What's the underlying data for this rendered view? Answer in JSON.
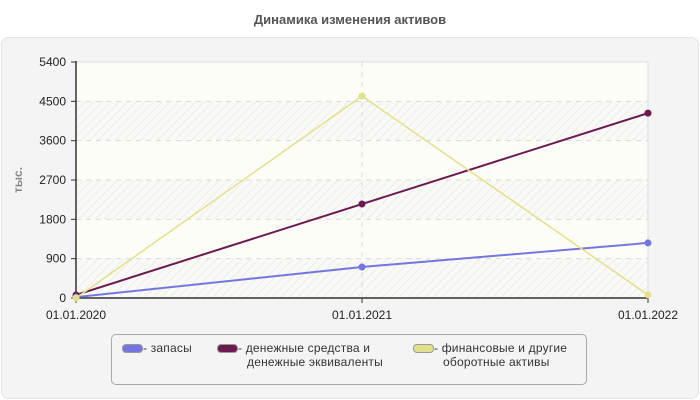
{
  "title": "Динамика изменения активов",
  "chart_data": {
    "type": "line",
    "title": "Динамика изменения активов",
    "xlabel": "",
    "ylabel": "тыс.",
    "x": [
      "01.01.2020",
      "01.01.2021",
      "01.01.2022"
    ],
    "ylim": [
      0,
      5400
    ],
    "yticks": [
      0,
      900,
      1800,
      2700,
      3600,
      4500,
      5400
    ],
    "grid": true,
    "legend_position": "bottom",
    "series": [
      {
        "name": "- запасы",
        "color": "#7575e0",
        "values": [
          20,
          710,
          1260
        ]
      },
      {
        "name": "- денежные средства и денежные эквиваленты",
        "color": "#6b1a4f",
        "values": [
          70,
          2150,
          4230
        ]
      },
      {
        "name": "- финансовые и другие оборотные активы",
        "color": "#e3e08c",
        "values": [
          0,
          4620,
          70
        ]
      }
    ]
  },
  "legend": {
    "items": [
      {
        "line1": "- запасы",
        "line2": "",
        "color": "#7575e0"
      },
      {
        "line1": "- денежные средства и",
        "line2": "денежные эквиваленты",
        "color": "#6b1a4f"
      },
      {
        "line1": "- финансовые и другие",
        "line2": "оборотные активы",
        "color": "#e3e08c"
      }
    ]
  }
}
